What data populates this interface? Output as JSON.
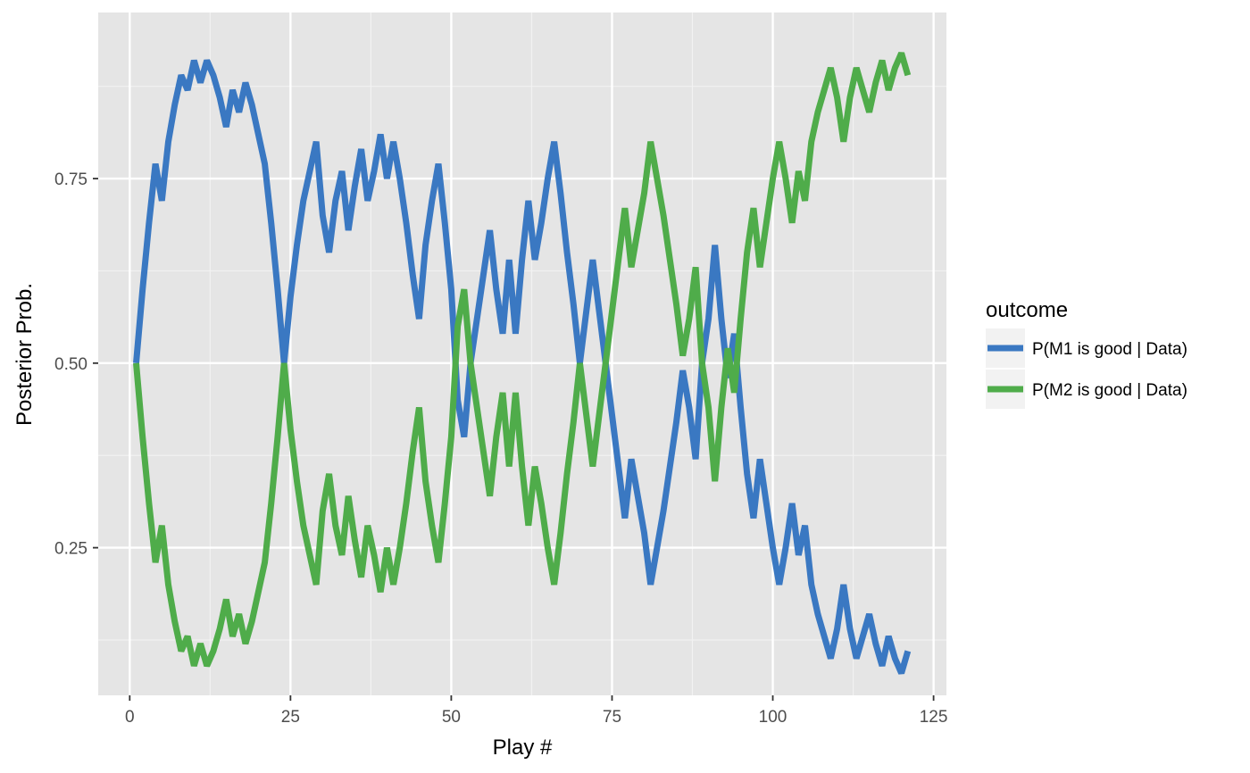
{
  "chart_data": {
    "type": "line",
    "xlabel": "Play #",
    "ylabel": "Posterior Prob.",
    "xlim": [
      -4.9,
      127
    ],
    "ylim": [
      0.05,
      0.975
    ],
    "x_ticks": [
      0,
      25,
      50,
      75,
      100,
      125
    ],
    "x_tick_labels": [
      "0",
      "25",
      "50",
      "75",
      "100",
      "125"
    ],
    "y_ticks": [
      0.25,
      0.5,
      0.75
    ],
    "y_tick_labels": [
      "0.25",
      "0.50",
      "0.75"
    ],
    "grid": true,
    "legend": {
      "title": "outcome",
      "position": "right"
    },
    "x": [
      1,
      2,
      3,
      4,
      5,
      6,
      7,
      8,
      9,
      10,
      11,
      12,
      13,
      14,
      15,
      16,
      17,
      18,
      19,
      20,
      21,
      22,
      23,
      24,
      25,
      26,
      27,
      28,
      29,
      30,
      31,
      32,
      33,
      34,
      35,
      36,
      37,
      38,
      39,
      40,
      41,
      42,
      43,
      44,
      45,
      46,
      47,
      48,
      49,
      50,
      51,
      52,
      53,
      54,
      55,
      56,
      57,
      58,
      59,
      60,
      61,
      62,
      63,
      64,
      65,
      66,
      67,
      68,
      69,
      70,
      71,
      72,
      73,
      74,
      75,
      76,
      77,
      78,
      79,
      80,
      81,
      82,
      83,
      84,
      85,
      86,
      87,
      88,
      89,
      90,
      91,
      92,
      93,
      94,
      95,
      96,
      97,
      98,
      99,
      100,
      101,
      102,
      103,
      104,
      105,
      106,
      107,
      108,
      109,
      110,
      111,
      112,
      113,
      114,
      115,
      116,
      117,
      118,
      119,
      120,
      121
    ],
    "series": [
      {
        "name": "P(M1 is good | Data)",
        "color": "#3a78c2",
        "values": [
          0.5,
          0.6,
          0.69,
          0.77,
          0.72,
          0.8,
          0.85,
          0.89,
          0.87,
          0.91,
          0.88,
          0.91,
          0.89,
          0.86,
          0.82,
          0.87,
          0.84,
          0.88,
          0.85,
          0.81,
          0.77,
          0.69,
          0.6,
          0.5,
          0.59,
          0.66,
          0.72,
          0.76,
          0.8,
          0.7,
          0.65,
          0.72,
          0.76,
          0.68,
          0.74,
          0.79,
          0.72,
          0.76,
          0.81,
          0.75,
          0.8,
          0.75,
          0.69,
          0.62,
          0.56,
          0.66,
          0.72,
          0.77,
          0.69,
          0.6,
          0.45,
          0.4,
          0.5,
          0.56,
          0.62,
          0.68,
          0.6,
          0.54,
          0.64,
          0.54,
          0.64,
          0.72,
          0.64,
          0.69,
          0.75,
          0.8,
          0.73,
          0.65,
          0.58,
          0.5,
          0.57,
          0.64,
          0.57,
          0.5,
          0.43,
          0.36,
          0.29,
          0.37,
          0.32,
          0.27,
          0.2,
          0.25,
          0.3,
          0.36,
          0.42,
          0.49,
          0.44,
          0.37,
          0.5,
          0.56,
          0.66,
          0.56,
          0.48,
          0.54,
          0.44,
          0.35,
          0.29,
          0.37,
          0.31,
          0.25,
          0.2,
          0.25,
          0.31,
          0.24,
          0.28,
          0.2,
          0.16,
          0.13,
          0.1,
          0.14,
          0.2,
          0.14,
          0.1,
          0.13,
          0.16,
          0.12,
          0.09,
          0.13,
          0.1,
          0.08,
          0.11
        ]
      },
      {
        "name": "P(M2 is good | Data)",
        "color": "#4fac4a",
        "values": [
          0.5,
          0.4,
          0.31,
          0.23,
          0.28,
          0.2,
          0.15,
          0.11,
          0.13,
          0.09,
          0.12,
          0.09,
          0.11,
          0.14,
          0.18,
          0.13,
          0.16,
          0.12,
          0.15,
          0.19,
          0.23,
          0.31,
          0.4,
          0.5,
          0.41,
          0.34,
          0.28,
          0.24,
          0.2,
          0.3,
          0.35,
          0.28,
          0.24,
          0.32,
          0.26,
          0.21,
          0.28,
          0.24,
          0.19,
          0.25,
          0.2,
          0.25,
          0.31,
          0.38,
          0.44,
          0.34,
          0.28,
          0.23,
          0.31,
          0.4,
          0.55,
          0.6,
          0.5,
          0.44,
          0.38,
          0.32,
          0.4,
          0.46,
          0.36,
          0.46,
          0.36,
          0.28,
          0.36,
          0.31,
          0.25,
          0.2,
          0.27,
          0.35,
          0.42,
          0.5,
          0.43,
          0.36,
          0.43,
          0.5,
          0.57,
          0.64,
          0.71,
          0.63,
          0.68,
          0.73,
          0.8,
          0.75,
          0.7,
          0.64,
          0.58,
          0.51,
          0.56,
          0.63,
          0.5,
          0.44,
          0.34,
          0.44,
          0.52,
          0.46,
          0.56,
          0.65,
          0.71,
          0.63,
          0.69,
          0.75,
          0.8,
          0.75,
          0.69,
          0.76,
          0.72,
          0.8,
          0.84,
          0.87,
          0.9,
          0.86,
          0.8,
          0.86,
          0.9,
          0.87,
          0.84,
          0.88,
          0.91,
          0.87,
          0.9,
          0.92,
          0.89
        ]
      }
    ]
  }
}
